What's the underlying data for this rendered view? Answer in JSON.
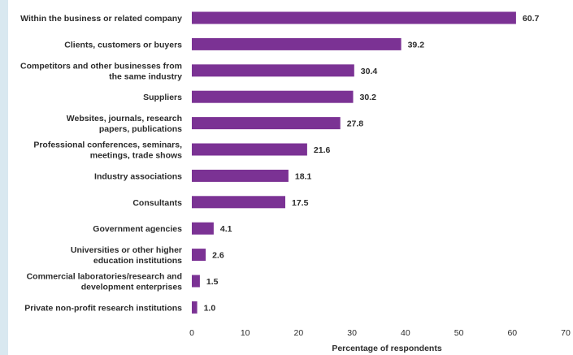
{
  "chart_data": {
    "type": "bar",
    "orientation": "horizontal",
    "title": "",
    "xlabel": "Percentage of respondents",
    "ylabel": "",
    "xlim": [
      0,
      70
    ],
    "xticks": [
      0,
      10,
      20,
      30,
      40,
      50,
      60,
      70
    ],
    "grid": false,
    "categories": [
      "Within the business or related company",
      "Clients, customers or buyers",
      "Competitors and other businesses from the same industry",
      "Suppliers",
      "Websites, journals, research papers, publications",
      "Professional conferences, seminars, meetings, trade shows",
      "Industry associations",
      "Consultants",
      "Government agencies",
      "Universities or other higher education institutions",
      "Commercial laboratories/research and development enterprises",
      "Private non-profit research institutions"
    ],
    "category_lines": [
      [
        "Within the business or related company"
      ],
      [
        "Clients, customers or buyers"
      ],
      [
        "Competitors and other businesses from",
        "the same industry"
      ],
      [
        "Suppliers"
      ],
      [
        "Websites, journals, research",
        "papers, publications"
      ],
      [
        "Professional conferences, seminars,",
        "meetings, trade shows"
      ],
      [
        "Industry associations"
      ],
      [
        "Consultants"
      ],
      [
        "Government agencies"
      ],
      [
        "Universities or other higher",
        "education institutions"
      ],
      [
        "Commercial laboratories/research and",
        "development enterprises"
      ],
      [
        "Private non-profit research institutions"
      ]
    ],
    "values": [
      60.7,
      39.2,
      30.4,
      30.2,
      27.8,
      21.6,
      18.1,
      17.5,
      4.1,
      2.6,
      1.5,
      1.0
    ],
    "value_labels": [
      "60.7",
      "39.2",
      "30.4",
      "30.2",
      "27.8",
      "21.6",
      "18.1",
      "17.5",
      "4.1",
      "2.6",
      "1.5",
      "1.0"
    ],
    "colors": {
      "bar": "#7b3294",
      "background": "#ffffff",
      "frame": "#d9e8f0",
      "accent": "#3a7fc1"
    }
  }
}
